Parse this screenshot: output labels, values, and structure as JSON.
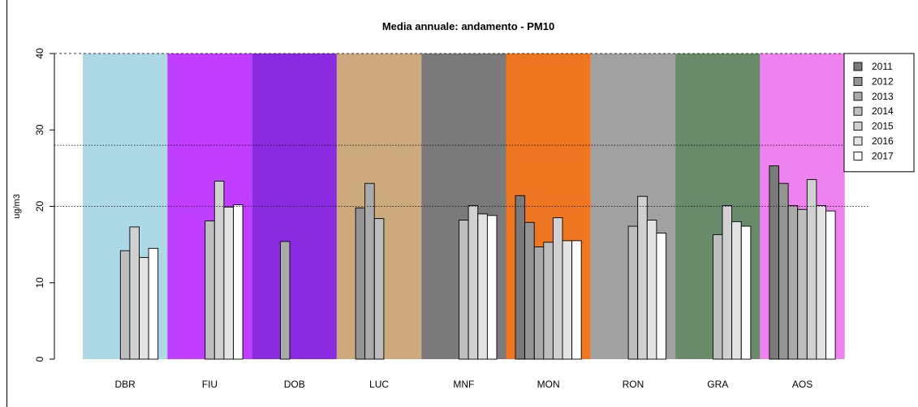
{
  "chart_data": {
    "type": "bar",
    "title": "Media annuale: andamento - PM10",
    "xlabel": "",
    "ylabel": "ug/m3",
    "ylim": [
      0,
      40
    ],
    "yticks": [
      0,
      10,
      20,
      30,
      40
    ],
    "reference_lines": [
      {
        "value": 40,
        "style": "dashed"
      },
      {
        "value": 28,
        "style": "dotted"
      },
      {
        "value": 20,
        "style": "dotted"
      }
    ],
    "categories": [
      "DBR",
      "FIU",
      "DOB",
      "LUC",
      "MNF",
      "MON",
      "RON",
      "GRA",
      "AOS"
    ],
    "background_colors": [
      "#add8e6",
      "#bf3eff",
      "#8a2be2",
      "#cdaa7d",
      "#7a7a7a",
      "#ee7621",
      "#a1a1a1",
      "#698b69",
      "#ee82ee"
    ],
    "series": [
      {
        "name": "2011",
        "color": "#7a7a7a",
        "values": [
          null,
          null,
          null,
          null,
          null,
          21.4,
          null,
          null,
          25.3
        ]
      },
      {
        "name": "2012",
        "color": "#949494",
        "values": [
          null,
          null,
          null,
          19.8,
          null,
          17.9,
          null,
          null,
          23.0
        ]
      },
      {
        "name": "2013",
        "color": "#aaaaaa",
        "values": [
          null,
          null,
          15.4,
          23.0,
          null,
          14.7,
          null,
          null,
          20.1
        ]
      },
      {
        "name": "2014",
        "color": "#bebebe",
        "values": [
          14.2,
          18.1,
          null,
          18.4,
          18.2,
          15.3,
          17.4,
          16.3,
          19.6
        ]
      },
      {
        "name": "2015",
        "color": "#d1d1d1",
        "values": [
          17.3,
          23.3,
          null,
          null,
          20.1,
          18.5,
          21.3,
          20.1,
          23.5
        ]
      },
      {
        "name": "2016",
        "color": "#e3e3e3",
        "values": [
          13.3,
          19.9,
          null,
          null,
          19.0,
          15.5,
          18.2,
          18.0,
          20.1
        ]
      },
      {
        "name": "2017",
        "color": "#ffffff",
        "values": [
          14.5,
          20.2,
          null,
          null,
          18.8,
          15.5,
          16.5,
          17.4,
          19.4
        ]
      }
    ],
    "legend_placement": "top-right",
    "grid": false
  }
}
